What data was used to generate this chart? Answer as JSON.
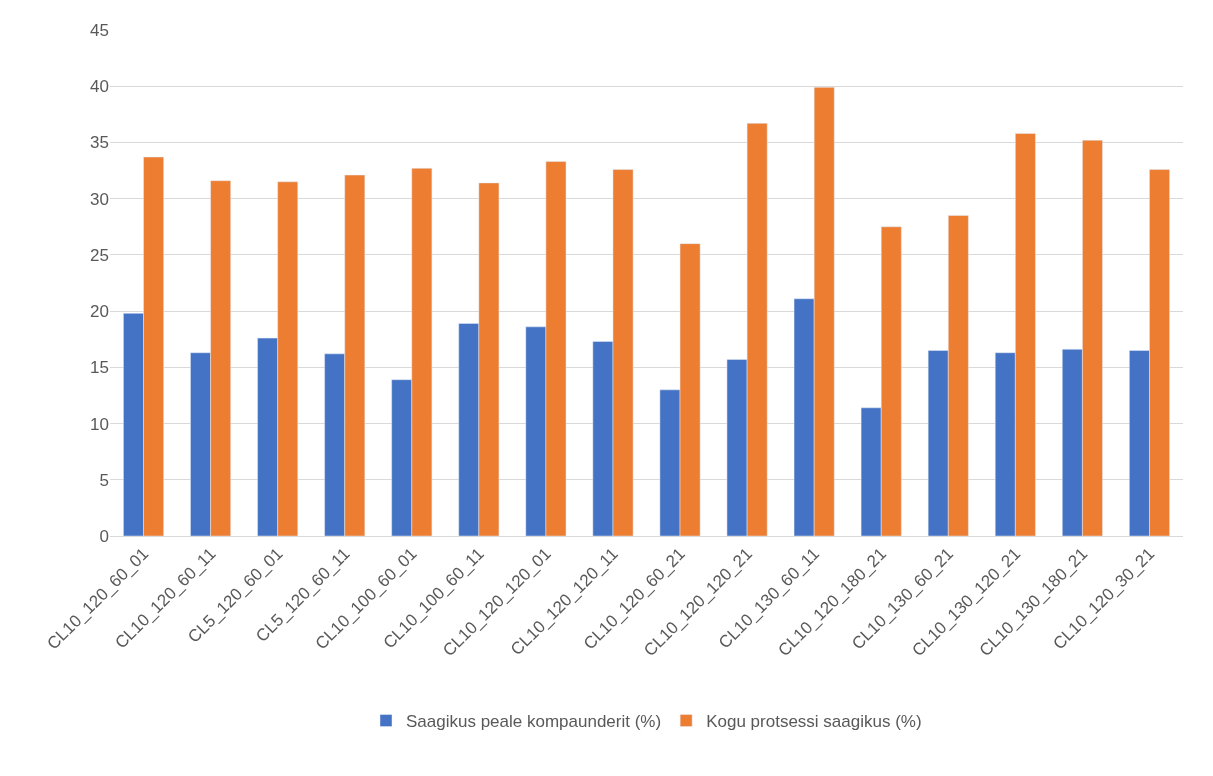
{
  "chart_data": {
    "type": "bar",
    "categories": [
      "CL10_120_60_01",
      "CL10_120_60_11",
      "CL5_120_60_01",
      "CL5_120_60_11",
      "CL10_100_60_01",
      "CL10_100_60_11",
      "CL10_120_120_01",
      "CL10_120_120_11",
      "CL10_120_60_21",
      "CL10_120_120_21",
      "CL10_130_60_11",
      "CL10_120_180_21",
      "CL10_130_60_21",
      "CL10_130_120_21",
      "CL10_130_180_21",
      "CL10_120_30_21"
    ],
    "series": [
      {
        "name": "Saagikus peale kompaunderit (%)",
        "color": "#4472c4",
        "values": [
          19.8,
          16.3,
          17.6,
          16.2,
          13.9,
          18.9,
          18.6,
          17.3,
          13.0,
          15.7,
          21.1,
          11.4,
          16.5,
          16.3,
          16.6,
          16.5
        ]
      },
      {
        "name": "Kogu protsessi saagikus (%)",
        "color": "#ed7d31",
        "values": [
          33.7,
          31.6,
          31.5,
          32.1,
          32.7,
          31.4,
          33.3,
          32.6,
          26.0,
          36.7,
          39.9,
          27.5,
          28.5,
          35.8,
          35.2,
          32.6
        ]
      }
    ],
    "ylim": [
      0,
      45
    ],
    "yticks": [
      0,
      5,
      10,
      15,
      20,
      25,
      30,
      35,
      40,
      45
    ],
    "grid": "y",
    "legend": "bottom"
  }
}
